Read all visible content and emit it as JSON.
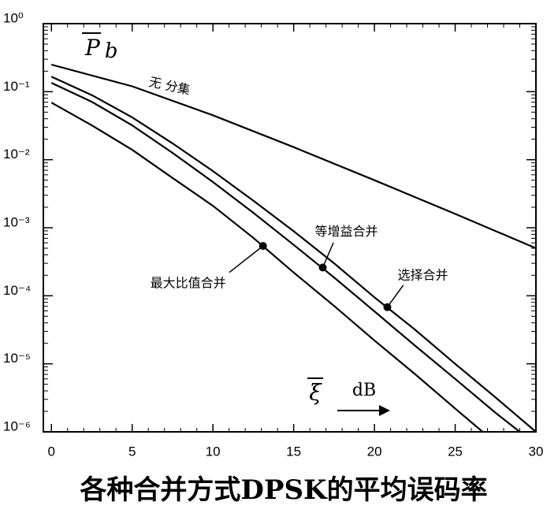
{
  "chart_data": {
    "type": "line",
    "title": "各种合并方式DPSK的平均误码率",
    "y_label": "P",
    "y_label_sub": "b",
    "x_label": "ξ",
    "x_unit": "dB",
    "log_y": true,
    "xlim": [
      -0.5,
      30
    ],
    "xticks": [
      0,
      5,
      10,
      15,
      20,
      25,
      30
    ],
    "ylim": [
      1e-06,
      1
    ],
    "yticks": [
      {
        "value": 1,
        "label": "10⁰"
      },
      {
        "value": 0.1,
        "label": "10⁻¹"
      },
      {
        "value": 0.01,
        "label": "10⁻²"
      },
      {
        "value": 0.001,
        "label": "10⁻³"
      },
      {
        "value": 0.0001,
        "label": "10⁻⁴"
      },
      {
        "value": 1e-05,
        "label": "10⁻⁵"
      },
      {
        "value": 1e-06,
        "label": "10⁻⁶"
      }
    ],
    "series": [
      {
        "name": "无 分集",
        "color": "#000000",
        "x": [
          0,
          5,
          10,
          15,
          20,
          25,
          30
        ],
        "values": [
          0.25,
          0.12,
          0.045,
          0.0153,
          0.005,
          0.0016,
          0.0005
        ]
      },
      {
        "name": "选择合并",
        "color": "#000000",
        "x": [
          0,
          2.5,
          5,
          7.5,
          10,
          12.5,
          15,
          17.5,
          20,
          22.5,
          25,
          27.5,
          30
        ],
        "values": [
          0.166,
          0.089,
          0.042,
          0.0174,
          0.0068,
          0.0025,
          0.00089,
          0.0003,
          9.5e-05,
          3.2e-05,
          1e-05,
          3.2e-06,
          1e-06
        ]
      },
      {
        "name": "等增益合并",
        "color": "#000000",
        "x": [
          0,
          2.5,
          5,
          7.5,
          10,
          12.5,
          15,
          17.5,
          20,
          22.5,
          25,
          27.5,
          29
        ],
        "values": [
          0.135,
          0.071,
          0.032,
          0.0126,
          0.0047,
          0.00166,
          0.00056,
          0.000186,
          5.9e-05,
          1.86e-05,
          6e-06,
          1.9e-06,
          1e-06
        ]
      },
      {
        "name": "最大比值合并",
        "color": "#000000",
        "x": [
          0,
          2.5,
          5,
          7.5,
          10,
          12.5,
          15,
          17.5,
          20,
          22.5,
          25,
          26.7
        ],
        "values": [
          0.069,
          0.032,
          0.014,
          0.0054,
          0.0021,
          0.00071,
          0.00022,
          7.1e-05,
          2.2e-05,
          7.1e-06,
          2.2e-06,
          1e-06
        ]
      }
    ],
    "annotations": [
      {
        "series": 3,
        "x": 13.1,
        "y": 0.00054
      },
      {
        "series": 2,
        "x": 16.8,
        "y": 0.00026
      },
      {
        "series": 1,
        "x": 20.8,
        "y": 6.8e-05
      }
    ]
  }
}
